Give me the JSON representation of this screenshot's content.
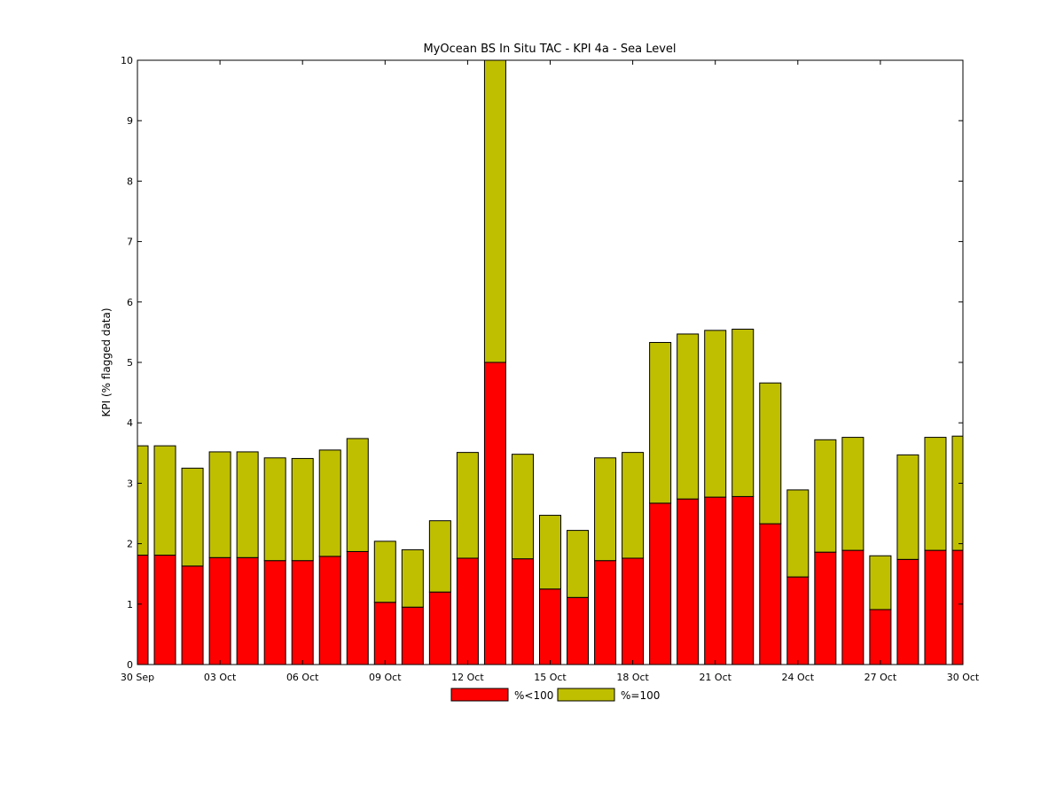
{
  "chart_data": {
    "type": "bar",
    "stacked": true,
    "title": "MyOcean  BS In Situ TAC - KPI 4a - Sea Level",
    "xlabel": "",
    "ylabel": "KPI (% flagged data)",
    "ylim": [
      0,
      10
    ],
    "xlim": [
      "2012-09-30",
      "2012-10-30"
    ],
    "y_ticks": [
      "0",
      "1",
      "2",
      "3",
      "4",
      "5",
      "6",
      "7",
      "8",
      "9",
      "10"
    ],
    "x_ticks": [
      {
        "date": "2012-09-30",
        "label": "30 Sep"
      },
      {
        "date": "2012-10-03",
        "label": "03 Oct"
      },
      {
        "date": "2012-10-06",
        "label": "06 Oct"
      },
      {
        "date": "2012-10-09",
        "label": "09 Oct"
      },
      {
        "date": "2012-10-12",
        "label": "12 Oct"
      },
      {
        "date": "2012-10-15",
        "label": "15 Oct"
      },
      {
        "date": "2012-10-18",
        "label": "18 Oct"
      },
      {
        "date": "2012-10-21",
        "label": "21 Oct"
      },
      {
        "date": "2012-10-24",
        "label": "24 Oct"
      },
      {
        "date": "2012-10-27",
        "label": "27 Oct"
      },
      {
        "date": "2012-10-30",
        "label": "30 Oct"
      }
    ],
    "categories": [
      "2012-09-30",
      "2012-10-01",
      "2012-10-02",
      "2012-10-03",
      "2012-10-04",
      "2012-10-05",
      "2012-10-06",
      "2012-10-07",
      "2012-10-08",
      "2012-10-09",
      "2012-10-10",
      "2012-10-11",
      "2012-10-12",
      "2012-10-13",
      "2012-10-14",
      "2012-10-15",
      "2012-10-16",
      "2012-10-17",
      "2012-10-18",
      "2012-10-19",
      "2012-10-20",
      "2012-10-21",
      "2012-10-22",
      "2012-10-23",
      "2012-10-24",
      "2012-10-25",
      "2012-10-26",
      "2012-10-27",
      "2012-10-28",
      "2012-10-29",
      "2012-10-30"
    ],
    "series": [
      {
        "name": "%<100",
        "color": "#ff0000",
        "values": [
          1.81,
          1.81,
          1.63,
          1.77,
          1.77,
          1.72,
          1.72,
          1.79,
          1.87,
          1.03,
          0.95,
          1.2,
          1.76,
          5.0,
          1.75,
          1.25,
          1.11,
          1.72,
          1.76,
          2.67,
          2.74,
          2.77,
          2.78,
          2.33,
          1.45,
          1.86,
          1.89,
          0.91,
          1.74,
          1.89,
          1.89
        ]
      },
      {
        "name": "%=100",
        "color": "#bfbf00",
        "values": [
          1.81,
          1.81,
          1.62,
          1.75,
          1.75,
          1.7,
          1.69,
          1.76,
          1.87,
          1.01,
          0.95,
          1.18,
          1.75,
          5.0,
          1.73,
          1.22,
          1.11,
          1.7,
          1.75,
          2.66,
          2.73,
          2.76,
          2.77,
          2.33,
          1.44,
          1.86,
          1.87,
          0.89,
          1.73,
          1.87,
          1.89
        ]
      }
    ],
    "legend_position": "bottom-center",
    "grid": false
  }
}
